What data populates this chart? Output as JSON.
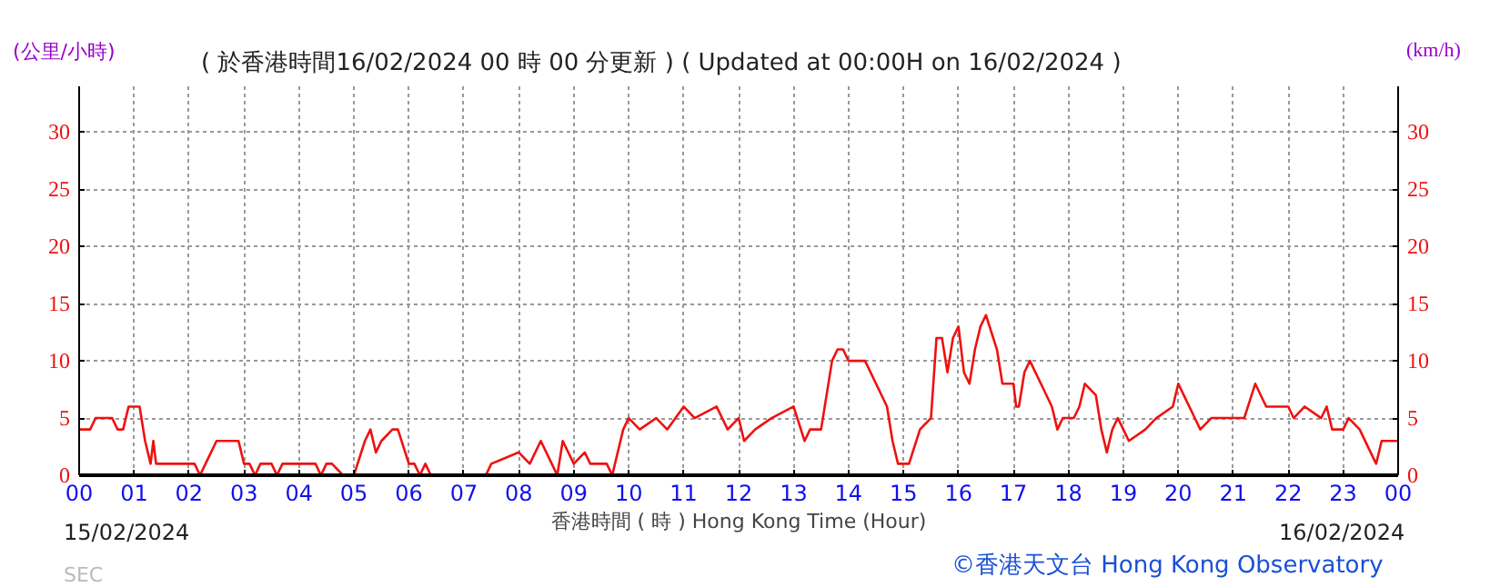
{
  "chart_data": {
    "type": "line",
    "title": "( 於香港時間16/02/2024 00 時 00 分更新 ) ( Updated at 00:00H on 16/02/2024 )",
    "ylabel": "(公里/小時)",
    "y2label": "(km/h)",
    "xlabel": "香港時間 ( 時 ) Hong Kong Time (Hour)",
    "xlim": [
      0,
      24
    ],
    "ylim": [
      0,
      34
    ],
    "y2lim": [
      0,
      34
    ],
    "xticks": [
      {
        "value": 0,
        "label": "00"
      },
      {
        "value": 1,
        "label": "01"
      },
      {
        "value": 2,
        "label": "02"
      },
      {
        "value": 3,
        "label": "03"
      },
      {
        "value": 4,
        "label": "04"
      },
      {
        "value": 5,
        "label": "05"
      },
      {
        "value": 6,
        "label": "06"
      },
      {
        "value": 7,
        "label": "07"
      },
      {
        "value": 8,
        "label": "08"
      },
      {
        "value": 9,
        "label": "09"
      },
      {
        "value": 10,
        "label": "10"
      },
      {
        "value": 11,
        "label": "11"
      },
      {
        "value": 12,
        "label": "12"
      },
      {
        "value": 13,
        "label": "13"
      },
      {
        "value": 14,
        "label": "14"
      },
      {
        "value": 15,
        "label": "15"
      },
      {
        "value": 16,
        "label": "16"
      },
      {
        "value": 17,
        "label": "17"
      },
      {
        "value": 18,
        "label": "18"
      },
      {
        "value": 19,
        "label": "19"
      },
      {
        "value": 20,
        "label": "20"
      },
      {
        "value": 21,
        "label": "21"
      },
      {
        "value": 22,
        "label": "22"
      },
      {
        "value": 23,
        "label": "23"
      },
      {
        "value": 24,
        "label": "00"
      }
    ],
    "yticks": [
      0,
      5,
      10,
      15,
      20,
      25,
      30
    ],
    "y2ticks": [
      0,
      5,
      10,
      15,
      20,
      25,
      30
    ],
    "grid": true,
    "line_style": "solid",
    "marker": "none",
    "series": [
      {
        "color": "#ee1111",
        "x": [
          0,
          0.2,
          0.3,
          0.6,
          0.7,
          0.8,
          0.9,
          1.1,
          1.2,
          1.3,
          1.35,
          1.4,
          1.5,
          2.1,
          2.2,
          2.3,
          2.5,
          2.9,
          3.0,
          3.1,
          3.2,
          3.3,
          3.5,
          3.6,
          3.7,
          4.0,
          4.1,
          4.3,
          4.4,
          4.5,
          4.6,
          4.8,
          5.0,
          5.2,
          5.3,
          5.4,
          5.5,
          5.7,
          5.8,
          6.0,
          6.1,
          6.2,
          6.3,
          6.4,
          7.4,
          7.5,
          8.0,
          8.2,
          8.4,
          8.6,
          8.7,
          8.8,
          9.0,
          9.2,
          9.3,
          9.6,
          9.7,
          9.9,
          10.0,
          10.2,
          10.5,
          10.7,
          11.0,
          11.2,
          11.6,
          11.8,
          12.0,
          12.1,
          12.3,
          12.6,
          13.0,
          13.2,
          13.3,
          13.5,
          13.7,
          13.8,
          13.9,
          14.0,
          14.3,
          14.5,
          14.7,
          14.8,
          14.9,
          15.1,
          15.3,
          15.5,
          15.6,
          15.7,
          15.8,
          15.9,
          16.0,
          16.1,
          16.2,
          16.3,
          16.4,
          16.5,
          16.7,
          16.8,
          17.0,
          17.05,
          17.1,
          17.2,
          17.3,
          17.5,
          17.7,
          17.8,
          17.9,
          18.1,
          18.2,
          18.3,
          18.5,
          18.6,
          18.7,
          18.8,
          18.9,
          19.0,
          19.1,
          19.4,
          19.6,
          19.9,
          20.0,
          20.1,
          20.3,
          20.4,
          20.6,
          21.2,
          21.4,
          21.6,
          22.0,
          22.1,
          22.3,
          22.6,
          22.7,
          22.8,
          23.0,
          23.1,
          23.3,
          23.5,
          23.6,
          23.7,
          24
        ],
        "values": [
          4,
          4,
          5,
          5,
          4,
          4,
          6,
          6,
          3,
          1,
          3,
          1,
          1,
          1,
          0,
          1,
          3,
          3,
          1,
          1,
          0,
          1,
          1,
          0,
          1,
          1,
          1,
          1,
          0,
          1,
          1,
          0,
          0,
          3,
          4,
          2,
          3,
          4,
          4,
          1,
          1,
          0,
          1,
          0,
          0,
          1,
          2,
          1,
          3,
          1,
          0,
          3,
          1,
          2,
          1,
          1,
          0,
          4,
          5,
          4,
          5,
          4,
          6,
          5,
          6,
          4,
          5,
          3,
          4,
          5,
          6,
          3,
          4,
          4,
          10,
          11,
          11,
          10,
          10,
          8,
          6,
          3,
          1,
          1,
          4,
          5,
          12,
          12,
          9,
          12,
          13,
          9,
          8,
          11,
          13,
          14,
          11,
          8,
          8,
          6,
          6,
          9,
          10,
          8,
          6,
          4,
          5,
          5,
          6,
          8,
          7,
          4,
          2,
          4,
          5,
          4,
          3,
          4,
          5,
          6,
          8,
          7,
          5,
          4,
          5,
          5,
          8,
          6,
          6,
          5,
          6,
          5,
          6,
          4,
          4,
          5,
          4,
          2,
          1,
          3,
          3
        ]
      }
    ],
    "annotations": [
      "15/02/2024",
      "16/02/2024",
      "©香港天文台 Hong Kong Observatory",
      "SEC"
    ]
  }
}
